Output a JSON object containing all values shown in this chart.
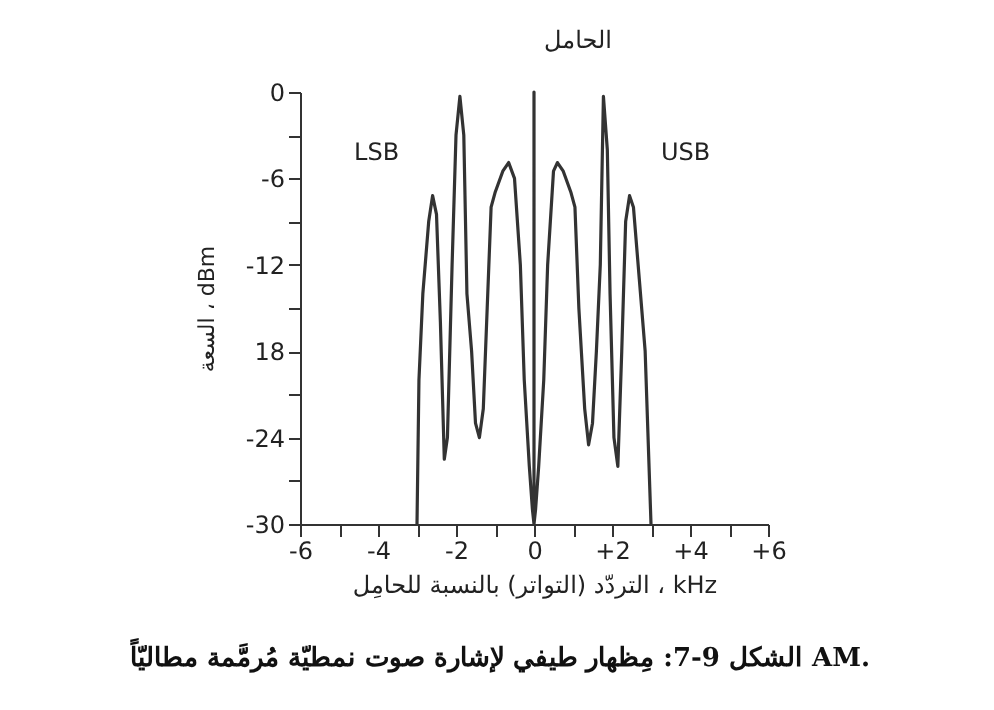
{
  "chart_data": {
    "type": "line",
    "xlabel": "التردّد (التواتر) بالنسبة للحامِل ، kHz",
    "ylabel": "السعة ، dBm",
    "annotations": [
      {
        "text": "الحامل",
        "x": 0,
        "y": 0
      },
      {
        "text": "LSB",
        "x": -2.6,
        "y": -7.2
      },
      {
        "text": "USB",
        "x": 2.45,
        "y": -7.2
      },
      "الشكل 9-7: مِظهار طيفي لإشارة صوت نمطيّة مُرمَّمة مطاليّاً AM."
    ],
    "series": [
      {
        "color": "#333333",
        "x": [
          -3.0,
          -2.95,
          -2.85,
          -2.7,
          -2.6,
          -2.5,
          -2.4,
          -2.3,
          -2.22,
          -2.1,
          -2.0,
          -1.9,
          -1.8,
          -1.72,
          -1.6,
          -1.5,
          -1.4,
          -1.3,
          -1.2,
          -1.1,
          -1.0,
          -0.8,
          -0.65,
          -0.5,
          -0.35,
          -0.25,
          -0.12,
          -0.04,
          0,
          0,
          0,
          0.04,
          0.12,
          0.25,
          0.35,
          0.5,
          0.6,
          0.75,
          0.95,
          1.05,
          1.15,
          1.3,
          1.4,
          1.5,
          1.6,
          1.7,
          1.78,
          1.88,
          1.95,
          2.05,
          2.15,
          2.25,
          2.35,
          2.45,
          2.55,
          2.7,
          2.85,
          3.0
        ],
        "values": [
          -30,
          -20,
          -14,
          -9,
          -7.2,
          -8.5,
          -16,
          -25.5,
          -24,
          -12,
          -3,
          -0.3,
          -3,
          -14,
          -18,
          -23,
          -24,
          -22,
          -15,
          -8,
          -7,
          -5.5,
          -4.9,
          -6,
          -12,
          -20,
          -26,
          -29,
          -30,
          0,
          -30,
          -29,
          -26,
          -20,
          -12,
          -5.5,
          -4.9,
          -5.5,
          -7,
          -8,
          -15,
          -22,
          -24.5,
          -23,
          -18,
          -12,
          -0.3,
          -4,
          -14,
          -24,
          -26,
          -18,
          -9,
          -7.2,
          -8,
          -13,
          -18,
          -30
        ]
      }
    ],
    "xlim": [
      -6,
      6
    ],
    "xticks": [
      -6,
      {
        "value": -5,
        "label": null
      },
      -4,
      {
        "value": -3,
        "label": null
      },
      -2,
      {
        "value": -1,
        "label": null
      },
      0,
      {
        "value": 1,
        "label": null
      },
      {
        "value": 2,
        "label": "+2"
      },
      {
        "value": 3,
        "label": null
      },
      {
        "value": 4,
        "label": "+4"
      },
      {
        "value": 5,
        "label": null
      },
      {
        "value": 6,
        "label": "+6"
      }
    ],
    "ylim": [
      -30,
      0
    ],
    "yticks": [
      -30,
      {
        "value": -27,
        "label": null
      },
      -24,
      {
        "value": -21,
        "label": null
      },
      {
        "value": -18,
        "label": "18"
      },
      {
        "value": -15,
        "label": null
      },
      -12,
      {
        "value": -9,
        "label": null
      },
      -6,
      {
        "value": -3,
        "label": null
      },
      0
    ],
    "grid": false,
    "marker": "none",
    "line_style": "solid"
  }
}
